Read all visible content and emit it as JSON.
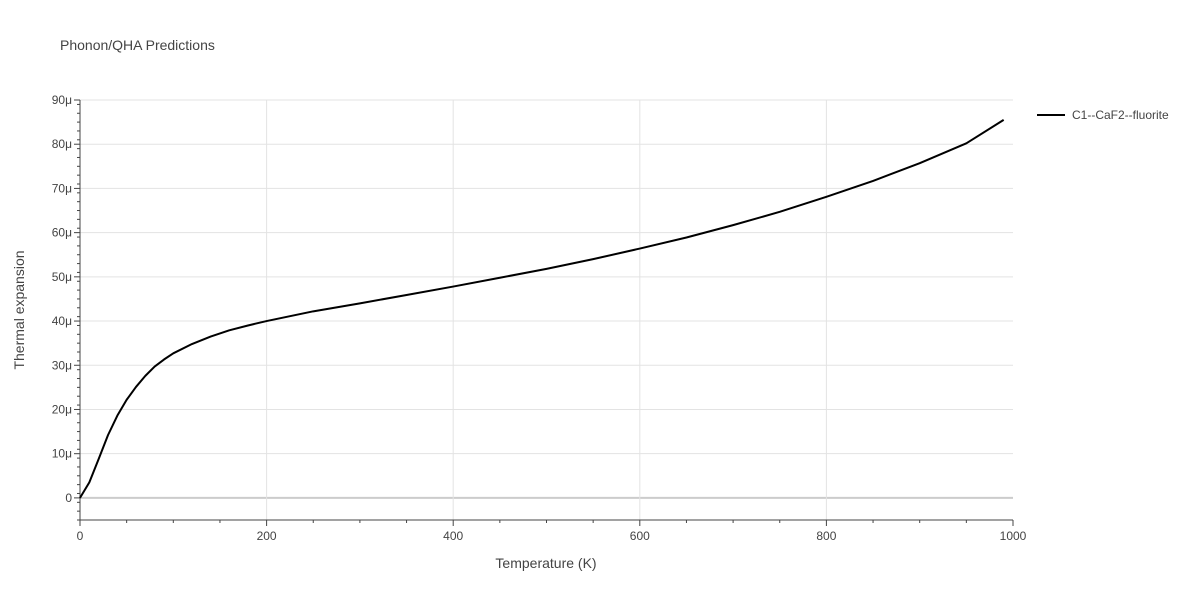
{
  "chart_data": {
    "type": "line",
    "title": "Phonon/QHA Predictions",
    "xlabel": "Temperature (K)",
    "ylabel": "Thermal expansion",
    "xlim": [
      0,
      1000
    ],
    "ylim": [
      -5,
      90
    ],
    "y_unit_suffix": "μ",
    "grid": true,
    "legend_position": "right",
    "x_ticks": [
      0,
      200,
      400,
      600,
      800,
      1000
    ],
    "x_tick_labels": [
      "0",
      "200",
      "400",
      "600",
      "800",
      "1000"
    ],
    "y_ticks": [
      0,
      10,
      20,
      30,
      40,
      50,
      60,
      70,
      80,
      90
    ],
    "y_tick_labels": [
      "0",
      "10μ",
      "20μ",
      "30μ",
      "40μ",
      "50μ",
      "60μ",
      "70μ",
      "80μ",
      "90μ"
    ],
    "series": [
      {
        "name": "C1--CaF2--fluorite",
        "color": "#000000",
        "x": [
          0,
          10,
          20,
          30,
          40,
          50,
          60,
          70,
          80,
          90,
          100,
          120,
          140,
          160,
          180,
          200,
          250,
          300,
          350,
          400,
          450,
          500,
          550,
          600,
          650,
          700,
          750,
          800,
          850,
          900,
          950,
          990
        ],
        "y": [
          0,
          3.5,
          8.8,
          14.2,
          18.6,
          22.2,
          25.1,
          27.6,
          29.7,
          31.3,
          32.7,
          34.8,
          36.5,
          37.9,
          39.0,
          40.0,
          42.2,
          44.0,
          45.9,
          47.8,
          49.8,
          51.8,
          54.0,
          56.4,
          58.9,
          61.7,
          64.7,
          68.1,
          71.7,
          75.7,
          80.2,
          85.5
        ]
      }
    ]
  }
}
